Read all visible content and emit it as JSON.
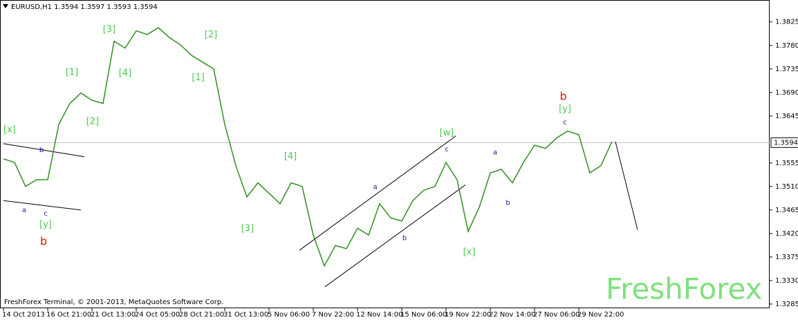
{
  "chart_data": {
    "type": "line",
    "title": "EURUSD,H1  1.3594 1.3597 1.3593 1.3594",
    "footer": "FreshForex Terminal, © 2001-2013, MetaQuotes Software Corp.",
    "watermark": "FreshForex",
    "color": "#2f8f1f",
    "categories": [
      "14 Oct 2013",
      null,
      null,
      null,
      "16 Oct 21:00",
      null,
      null,
      null,
      "21 Oct 13:00",
      null,
      null,
      null,
      "24 Oct 05:00",
      null,
      null,
      null,
      "28 Oct 21:00",
      null,
      null,
      null,
      "31 Oct 13:00",
      null,
      null,
      null,
      "5 Nov 06:00",
      null,
      null,
      null,
      "7 Nov 22:00",
      null,
      null,
      null,
      "12 Nov 14:00",
      null,
      null,
      null,
      "15 Nov 06:00",
      null,
      null,
      null,
      "19 Nov 22:00",
      null,
      null,
      null,
      "22 Nov 14:00",
      null,
      null,
      null,
      "27 Nov 06:00",
      null,
      null,
      null,
      "29 Nov 22:00",
      null,
      null,
      null
    ],
    "values": [
      1.3563,
      1.3556,
      1.351,
      1.3523,
      1.3523,
      1.3629,
      1.3669,
      1.3689,
      1.3675,
      1.3669,
      1.3788,
      1.3775,
      1.3808,
      1.3801,
      1.3814,
      1.3795,
      1.3781,
      1.3761,
      1.3748,
      1.3735,
      1.3629,
      1.355,
      1.349,
      1.3517,
      1.3497,
      1.3477,
      1.3517,
      1.351,
      1.3417,
      1.3358,
      1.3397,
      1.3391,
      1.343,
      1.3417,
      1.3477,
      1.345,
      1.3444,
      1.3483,
      1.3503,
      1.351,
      1.3556,
      1.3523,
      1.3424,
      1.347,
      1.3536,
      1.3543,
      1.3517,
      1.3556,
      1.3589,
      1.3583,
      1.3603,
      1.3616,
      1.3609,
      1.3536,
      1.355,
      1.3596
    ],
    "ylim": [
      1.3265,
      1.3867
    ],
    "yticks": [
      1.3825,
      {
        "value": 1.378,
        "label": "1.3780"
      },
      1.3735,
      {
        "value": 1.369,
        "label": "1.3690"
      },
      1.3645,
      1.3555,
      {
        "value": 1.351,
        "label": "1.3510"
      },
      1.3465,
      {
        "value": 1.342,
        "label": "1.3420"
      },
      1.3375,
      {
        "value": 1.333,
        "label": "1.3330"
      },
      1.3285
    ],
    "current_price": 1.3594,
    "trendlines": [
      {
        "x1": 0,
        "y1": 1.3592,
        "x2": 7.31,
        "y2": 1.3567
      },
      {
        "x1": 0,
        "y1": 1.3483,
        "x2": 7,
        "y2": 1.3465
      },
      {
        "x1": 26.75,
        "y1": 1.3388,
        "x2": 40.9,
        "y2": 1.3607
      },
      {
        "x1": 29.06,
        "y1": 1.3318,
        "x2": 41.75,
        "y2": 1.3513
      },
      {
        "x1": 55.31,
        "y1": 1.3596,
        "x2": 57.31,
        "y2": 1.3427
      }
    ],
    "annotations": [
      {
        "text": "[x]",
        "x": 0.56,
        "y": 1.3618,
        "color": "#4cc94c"
      },
      {
        "text": "b",
        "x": 3.44,
        "y": 1.358,
        "color": "#1a1a9a"
      },
      {
        "text": "a",
        "x": 1.875,
        "y": 1.3465,
        "color": "#1a1a9a"
      },
      {
        "text": "c",
        "x": 3.81,
        "y": 1.3458,
        "color": "#1a1a9a"
      },
      {
        "text": "[y]",
        "x": 3.81,
        "y": 1.3437,
        "color": "#4cc94c"
      },
      {
        "text": "b",
        "x": 3.63,
        "y": 1.3404,
        "color": "#e01010"
      },
      {
        "text": "[1]",
        "x": 6.19,
        "y": 1.3728,
        "color": "#4cc94c"
      },
      {
        "text": "[2]",
        "x": 8.06,
        "y": 1.3634,
        "color": "#4cc94c"
      },
      {
        "text": "[3]",
        "x": 9.56,
        "y": 1.381,
        "color": "#4cc94c"
      },
      {
        "text": "[4]",
        "x": 11,
        "y": 1.3727,
        "color": "#4cc94c"
      },
      {
        "text": "[1]",
        "x": 17.6,
        "y": 1.3718,
        "color": "#4cc94c"
      },
      {
        "text": "[2]",
        "x": 18.75,
        "y": 1.38,
        "color": "#4cc94c"
      },
      {
        "text": "[3]",
        "x": 22.06,
        "y": 1.3429,
        "color": "#4cc94c"
      },
      {
        "text": "[4]",
        "x": 25.94,
        "y": 1.3567,
        "color": "#4cc94c"
      },
      {
        "text": "a",
        "x": 33.6,
        "y": 1.3509,
        "color": "#1a1a9a"
      },
      {
        "text": "b",
        "x": 36.25,
        "y": 1.3411,
        "color": "#1a1a9a"
      },
      {
        "text": "c",
        "x": 40.06,
        "y": 1.3581,
        "color": "#1a1a9a"
      },
      {
        "text": "[w]",
        "x": 40.06,
        "y": 1.3612,
        "color": "#4cc94c"
      },
      {
        "text": "[x]",
        "x": 42.1,
        "y": 1.3384,
        "color": "#4cc94c"
      },
      {
        "text": "a",
        "x": 44.44,
        "y": 1.3575,
        "color": "#1a1a9a"
      },
      {
        "text": "b",
        "x": 45.6,
        "y": 1.3479,
        "color": "#1a1a9a"
      },
      {
        "text": "c",
        "x": 50.75,
        "y": 1.3633,
        "color": "#1a1a9a"
      },
      {
        "text": "[y]",
        "x": 50.75,
        "y": 1.3658,
        "color": "#4cc94c"
      },
      {
        "text": "b",
        "x": 50.6,
        "y": 1.3682,
        "color": "#e01010"
      }
    ]
  }
}
